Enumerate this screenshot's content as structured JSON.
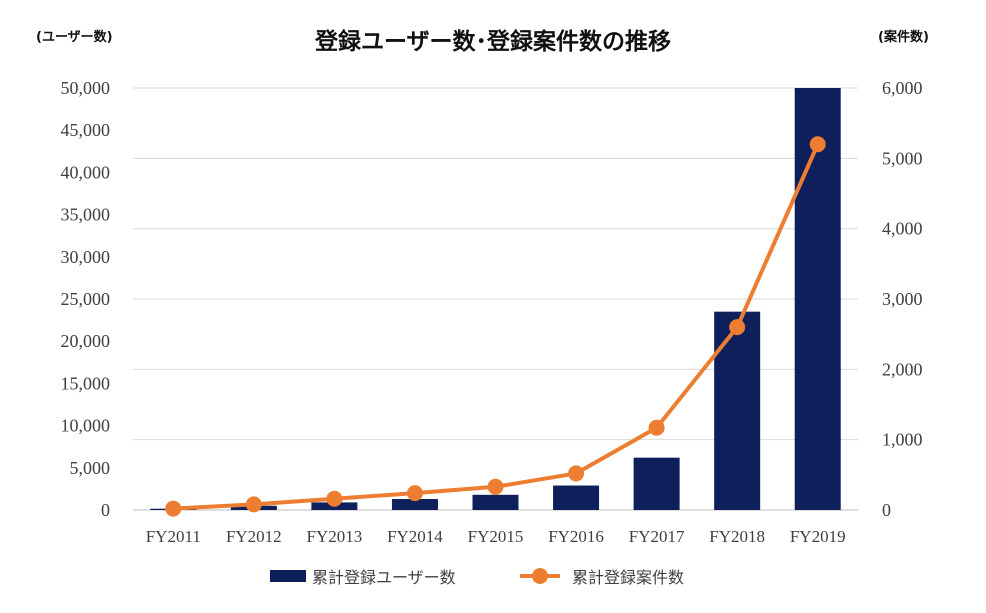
{
  "chart_data": {
    "type": "bar",
    "title": "登録ユーザー数･登録案件数の推移",
    "y_unit_left": "(ユーザー数)",
    "y_unit_right": "(案件数)",
    "categories": [
      "FY2011",
      "FY2012",
      "FY2013",
      "FY2014",
      "FY2015",
      "FY2016",
      "FY2017",
      "FY2018",
      "FY2019"
    ],
    "series": [
      {
        "name": "累計登録ユーザー数",
        "type": "bar",
        "axis": "left",
        "color": "#0e1f5b",
        "values": [
          150,
          500,
          900,
          1300,
          1800,
          2900,
          6200,
          23500,
          50000
        ]
      },
      {
        "name": "累計登録案件数",
        "type": "line",
        "axis": "right",
        "color": "#ed7d31",
        "values": [
          20,
          80,
          160,
          240,
          330,
          520,
          1170,
          2600,
          5200
        ]
      }
    ],
    "ylim_left": [
      0,
      50000
    ],
    "ylim_right": [
      0,
      6000
    ],
    "yticks_left": [
      "0",
      "5,000",
      "10,000",
      "15,000",
      "20,000",
      "25,000",
      "30,000",
      "35,000",
      "40,000",
      "45,000",
      "50,000"
    ],
    "yticks_right": [
      "0",
      "1,000",
      "2,000",
      "3,000",
      "4,000",
      "5,000",
      "6,000"
    ],
    "grid": true,
    "legend_position": "bottom"
  }
}
